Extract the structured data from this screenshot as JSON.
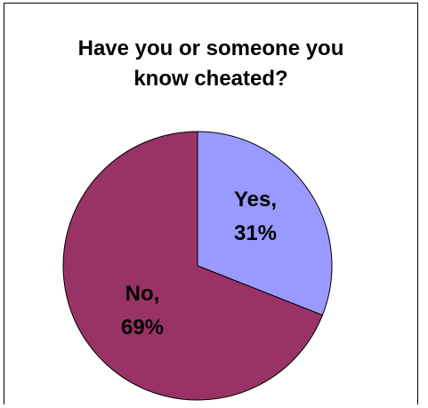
{
  "chart_data": {
    "type": "pie",
    "title": "Have you or someone you\nknow cheated?",
    "slices": [
      {
        "label": "Yes,",
        "percent_label": "31%",
        "value": 31,
        "color": "#9999ff"
      },
      {
        "label": "No,",
        "percent_label": "69%",
        "value": 69,
        "color": "#993366"
      }
    ],
    "start_angle_deg": 0,
    "direction": "clockwise"
  }
}
